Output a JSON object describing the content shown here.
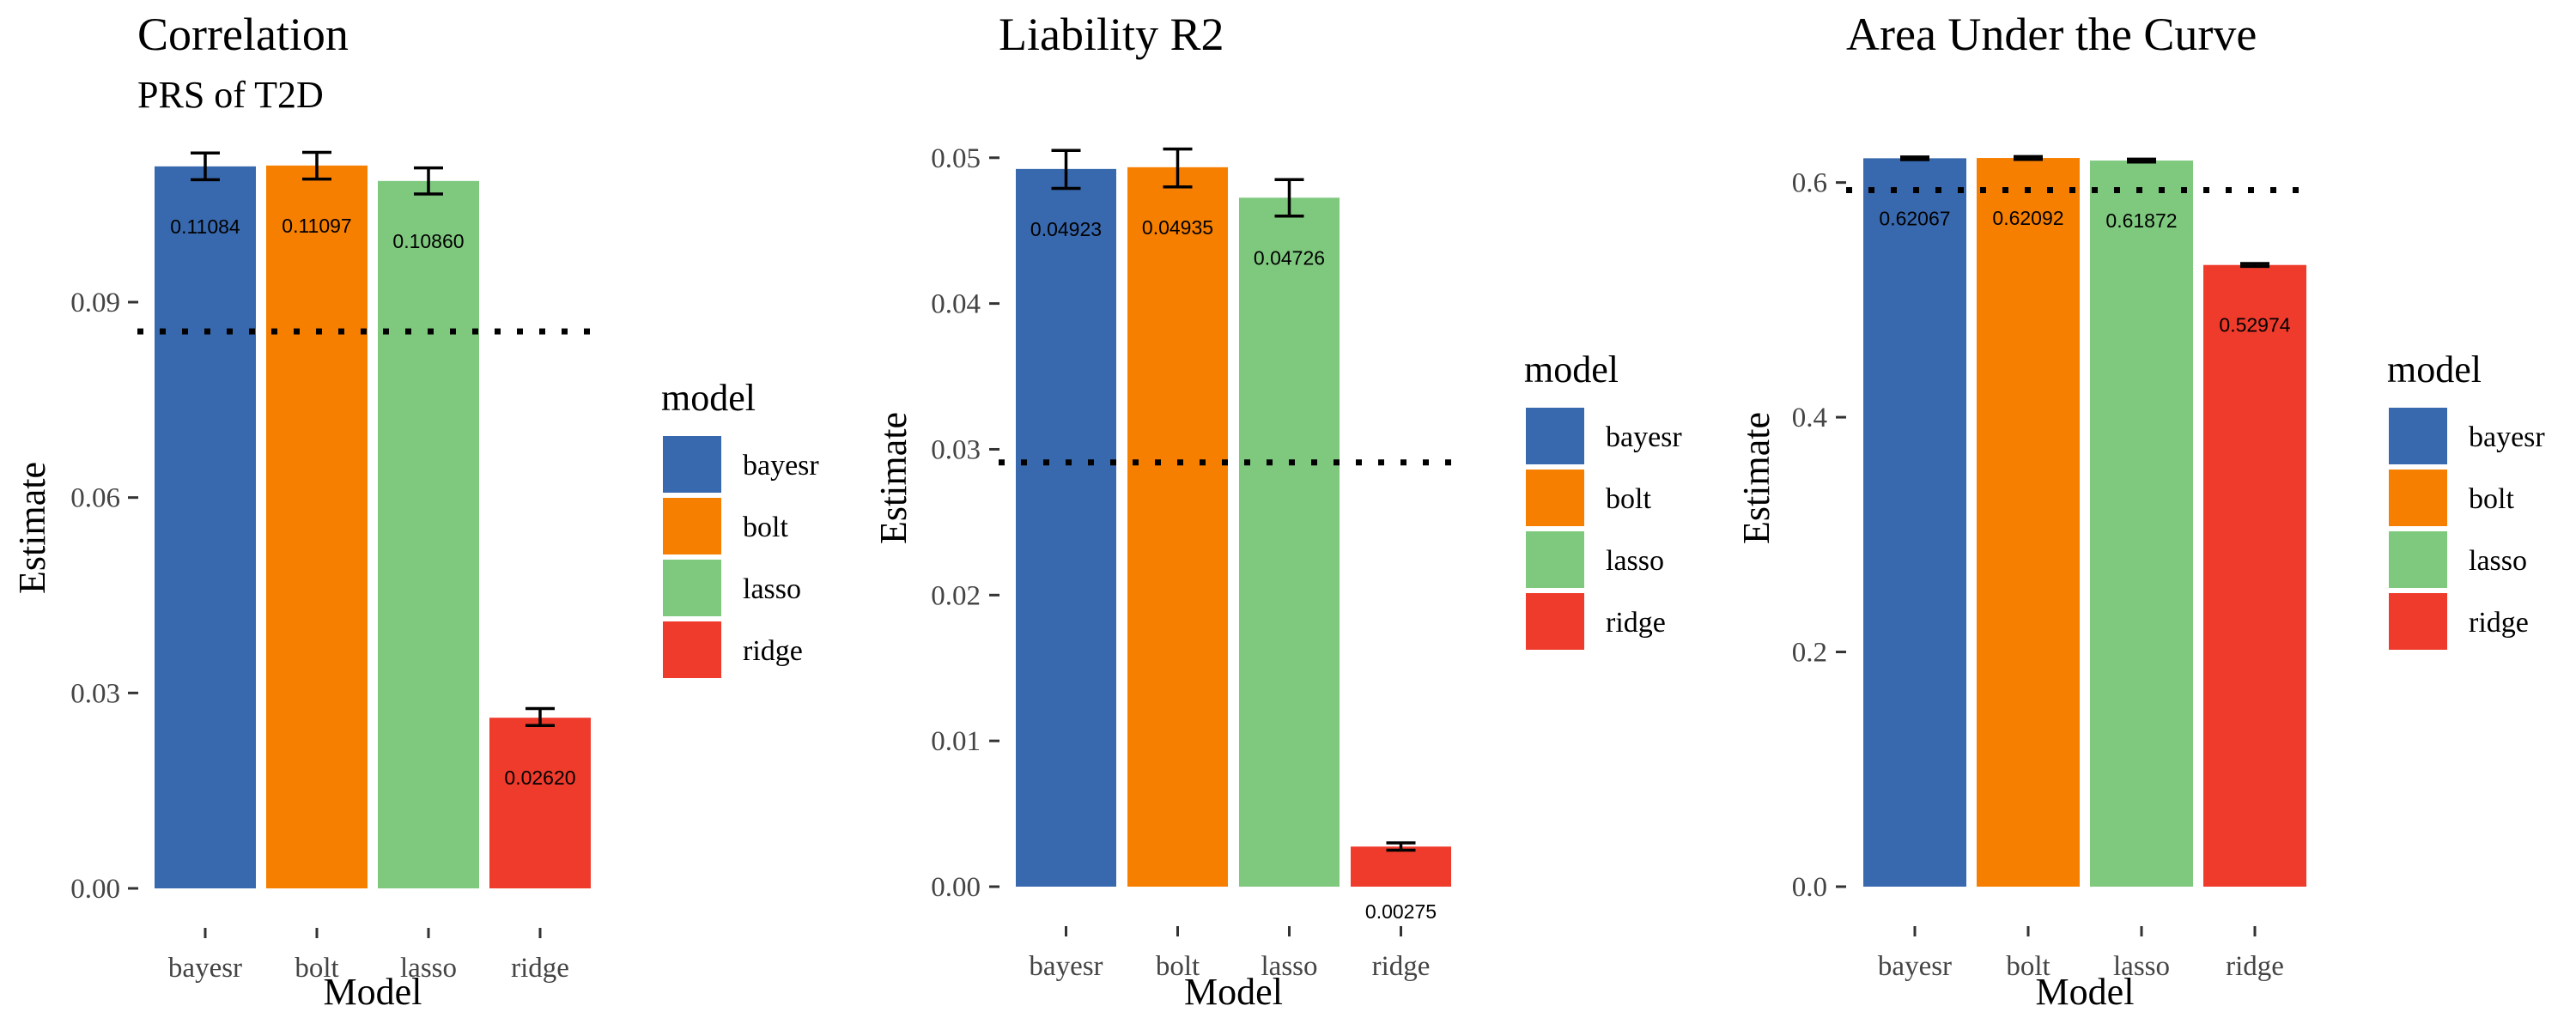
{
  "chart_data": [
    {
      "type": "bar",
      "title": "Correlation",
      "subtitle": "PRS of T2D",
      "xlabel": "Model",
      "ylabel": "Estimate",
      "categories": [
        "bayesr",
        "bolt",
        "lasso",
        "ridge"
      ],
      "values": [
        0.11084,
        0.11097,
        0.1086,
        0.0262
      ],
      "value_labels": [
        "0.11084",
        "0.11097",
        "0.10860",
        "0.02620"
      ],
      "error_low": [
        0.1088,
        0.1089,
        0.1066,
        0.025
      ],
      "error_high": [
        0.1129,
        0.113,
        0.1106,
        0.0276
      ],
      "reference_line": 0.0855,
      "ylim": [
        0,
        0.1153
      ],
      "yticks": [
        0,
        0.03,
        0.06,
        0.09
      ],
      "ytick_labels": [
        "0.00",
        "0.03",
        "0.06",
        "0.09"
      ],
      "legend": {
        "title": "model",
        "position": "right"
      },
      "grid": false
    },
    {
      "type": "bar",
      "title": "Liability R2",
      "xlabel": "Model",
      "ylabel": "Estimate",
      "categories": [
        "bayesr",
        "bolt",
        "lasso",
        "ridge"
      ],
      "values": [
        0.04923,
        0.04935,
        0.04726,
        0.00275
      ],
      "value_labels": [
        "0.04923",
        "0.04935",
        "0.04726",
        "0.00275"
      ],
      "error_low": [
        0.0479,
        0.048,
        0.046,
        0.0025
      ],
      "error_high": [
        0.0505,
        0.0506,
        0.0485,
        0.003
      ],
      "reference_line": 0.0291,
      "ylim": [
        0,
        0.0514
      ],
      "yticks": [
        0,
        0.01,
        0.02,
        0.03,
        0.04,
        0.05
      ],
      "ytick_labels": [
        "0.00",
        "0.01",
        "0.02",
        "0.03",
        "0.04",
        "0.05"
      ],
      "legend": {
        "title": "model",
        "position": "right"
      },
      "grid": false
    },
    {
      "type": "bar",
      "title": "Area Under the Curve",
      "xlabel": "Model",
      "ylabel": "Estimate",
      "categories": [
        "bayesr",
        "bolt",
        "lasso",
        "ridge"
      ],
      "values": [
        0.62067,
        0.62092,
        0.61872,
        0.52974
      ],
      "value_labels": [
        "0.62067",
        "0.62092",
        "0.61872",
        "0.52974"
      ],
      "error_low": [
        0.6195,
        0.6197,
        0.6175,
        0.5285
      ],
      "error_high": [
        0.6218,
        0.6221,
        0.6199,
        0.531
      ],
      "reference_line": 0.5935,
      "ylim": [
        0,
        0.6385
      ],
      "yticks": [
        0,
        0.2,
        0.4,
        0.6
      ],
      "ytick_labels": [
        "0.0",
        "0.2",
        "0.4",
        "0.6"
      ],
      "legend": {
        "title": "model",
        "position": "right"
      },
      "grid": false
    }
  ],
  "legend_items": [
    "bayesr",
    "bolt",
    "lasso",
    "ridge"
  ],
  "colors": {
    "bayesr": "#3869ae",
    "bolt": "#f77f00",
    "lasso": "#7fc97f",
    "ridge": "#ef3b2c"
  }
}
